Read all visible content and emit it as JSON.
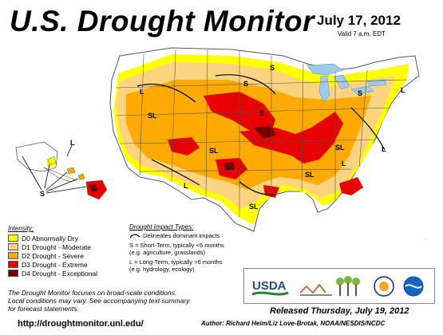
{
  "header": {
    "title": "U.S. Drought Monitor",
    "date": "July 17, 2012",
    "valid": "Valid 7 a.m. EDT"
  },
  "legend": {
    "title": "Intensity:",
    "items": [
      {
        "label": "D0 Abnormally Dry",
        "color": "#ffff00"
      },
      {
        "label": "D1 Drought - Moderate",
        "color": "#fcd37f"
      },
      {
        "label": "D2 Drought - Severe",
        "color": "#ffaa00"
      },
      {
        "label": "D3 Drought - Extreme",
        "color": "#e60000"
      },
      {
        "label": "D4 Drought - Exceptional",
        "color": "#730000"
      }
    ]
  },
  "impact": {
    "title": "Drought Impact Types:",
    "line": "Delineates dominant impacts",
    "short": "S = Short-Term, typically <6 months",
    "short_ex": "(e.g. agriculture, grasslands)",
    "long": "L = Long-Term, typically >6 months",
    "long_ex": "(e.g. hydrology, ecology)"
  },
  "map_labels": {
    "S": "S",
    "L": "L",
    "SL": "SL"
  },
  "logos": {
    "usda": "USDA"
  },
  "footer": {
    "note1": "The Drought Monitor focuses on broad-scale conditions.",
    "note2": "Local conditions may vary. See accompanying text summary",
    "note3": "for forecast statements.",
    "url": "http://droughtmonitor.unl.edu/",
    "released": "Released Thursday, July 19, 2012",
    "author": "Author: Richard Heim/Liz Love-Brotak, NOAA/NESDIS/NCDC"
  }
}
